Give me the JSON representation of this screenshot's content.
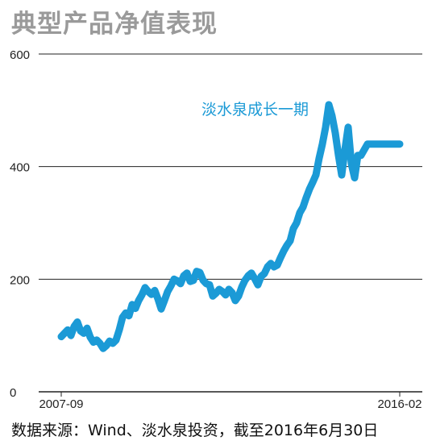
{
  "chart_data": {
    "type": "line",
    "title": "典型产品净值表现",
    "source": "数据来源：Wind、淡水泉投资，截至2016年6月30日",
    "xlabel": "",
    "ylabel": "",
    "x_tick_labels": [
      "2007-09",
      "2016-02"
    ],
    "y_ticks": [
      0,
      200,
      400,
      600
    ],
    "ylim": [
      0,
      600
    ],
    "grid": true,
    "series": [
      {
        "name": "淡水泉成长一期",
        "color": "#1b9ad6",
        "x": [
          "2007-09",
          "2007-10",
          "2007-11",
          "2007-12",
          "2008-01",
          "2008-02",
          "2008-03",
          "2008-04",
          "2008-05",
          "2008-06",
          "2008-07",
          "2008-08",
          "2008-09",
          "2008-10",
          "2008-11",
          "2008-12",
          "2009-01",
          "2009-02",
          "2009-03",
          "2009-04",
          "2009-05",
          "2009-06",
          "2009-07",
          "2009-08",
          "2009-09",
          "2009-10",
          "2009-11",
          "2009-12",
          "2010-01",
          "2010-02",
          "2010-03",
          "2010-04",
          "2010-05",
          "2010-06",
          "2010-07",
          "2010-08",
          "2010-09",
          "2010-10",
          "2010-11",
          "2010-12",
          "2011-01",
          "2011-02",
          "2011-03",
          "2011-04",
          "2011-05",
          "2011-06",
          "2011-07",
          "2011-08",
          "2011-09",
          "2011-10",
          "2011-11",
          "2011-12",
          "2012-01",
          "2012-02",
          "2012-03",
          "2012-04",
          "2012-05",
          "2012-06",
          "2012-07",
          "2012-08",
          "2012-09",
          "2012-10",
          "2012-11",
          "2012-12",
          "2013-01",
          "2013-02",
          "2013-03",
          "2013-04",
          "2013-05",
          "2013-06",
          "2013-07",
          "2013-08",
          "2013-09",
          "2013-10",
          "2013-11",
          "2013-12",
          "2014-01",
          "2014-02",
          "2014-03",
          "2014-04",
          "2014-05",
          "2014-06",
          "2014-07",
          "2014-08",
          "2014-09",
          "2014-10",
          "2014-11",
          "2014-12",
          "2015-01",
          "2015-02",
          "2015-03",
          "2015-04",
          "2015-05",
          "2015-06",
          "2015-07",
          "2015-08",
          "2015-09",
          "2015-10",
          "2015-11",
          "2015-12",
          "2016-01",
          "2016-02",
          "2016-03",
          "2016-04",
          "2016-05",
          "2016-06"
        ],
        "values": [
          98,
          104,
          110,
          100,
          116,
          124,
          108,
          104,
          113,
          97,
          88,
          92,
          86,
          77,
          82,
          90,
          86,
          92,
          110,
          132,
          140,
          135,
          155,
          148,
          162,
          172,
          185,
          178,
          173,
          180,
          165,
          147,
          162,
          178,
          188,
          200,
          197,
          192,
          206,
          211,
          196,
          198,
          214,
          212,
          198,
          192,
          190,
          170,
          175,
          182,
          178,
          172,
          182,
          176,
          162,
          170,
          186,
          198,
          206,
          211,
          201,
          190,
          205,
          210,
          222,
          228,
          222,
          225,
          238,
          250,
          260,
          268,
          290,
          300,
          318,
          328,
          345,
          360,
          372,
          385,
          415,
          440,
          470,
          510,
          490,
          460,
          420,
          385,
          430,
          470,
          405,
          380,
          420,
          420,
          430,
          440,
          440,
          440,
          440,
          440,
          440,
          440,
          440,
          440,
          440,
          440
        ]
      }
    ]
  }
}
